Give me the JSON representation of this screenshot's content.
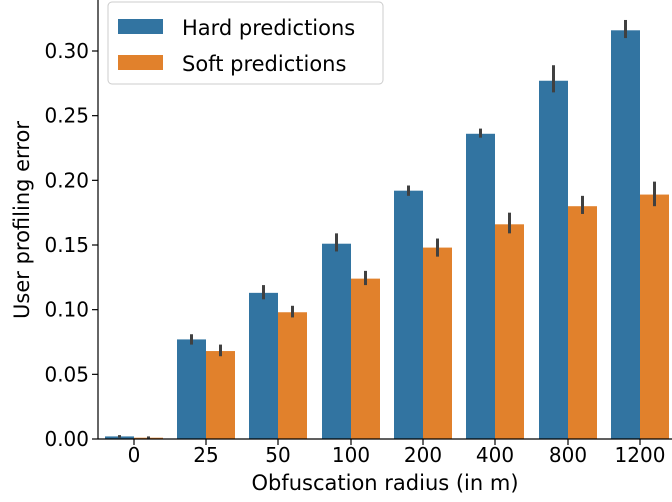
{
  "chart_data": {
    "type": "bar",
    "xlabel": "Obfuscation radius (in m)",
    "ylabel": "User profiling error",
    "categories": [
      "0",
      "25",
      "50",
      "100",
      "200",
      "400",
      "800",
      "1200"
    ],
    "ylim": [
      0,
      0.34
    ],
    "yticks": [
      "0.00",
      "0.05",
      "0.10",
      "0.15",
      "0.20",
      "0.25",
      "0.30"
    ],
    "series": [
      {
        "name": "Hard predictions",
        "color": "#3274a1",
        "values": [
          0.002,
          0.077,
          0.113,
          0.151,
          0.192,
          0.236,
          0.277,
          0.316
        ],
        "error_low": [
          0.001,
          0.073,
          0.108,
          0.145,
          0.188,
          0.233,
          0.268,
          0.31
        ],
        "error_high": [
          0.003,
          0.081,
          0.119,
          0.159,
          0.196,
          0.24,
          0.289,
          0.324
        ]
      },
      {
        "name": "Soft predictions",
        "color": "#e1812c",
        "values": [
          0.001,
          0.068,
          0.098,
          0.124,
          0.148,
          0.166,
          0.18,
          0.189
        ],
        "error_low": [
          0.0,
          0.064,
          0.094,
          0.119,
          0.141,
          0.159,
          0.174,
          0.18
        ],
        "error_high": [
          0.002,
          0.073,
          0.103,
          0.13,
          0.155,
          0.175,
          0.188,
          0.199
        ]
      }
    ],
    "grid": false,
    "legend": "top-left"
  }
}
